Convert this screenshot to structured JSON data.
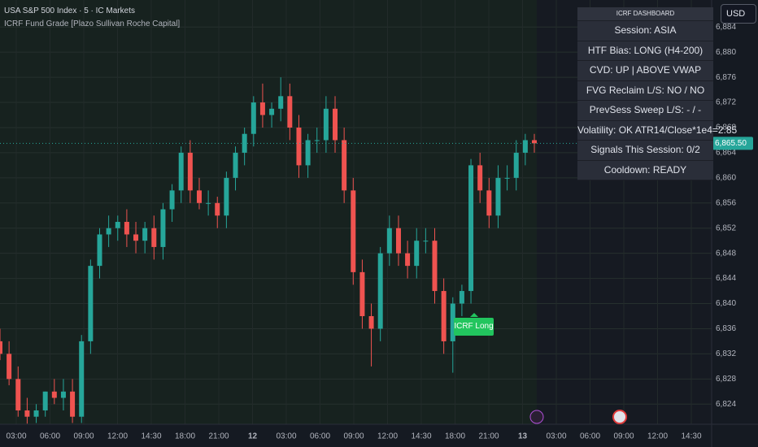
{
  "header": {
    "symbol": "USA S&P 500 Index · 5 · IC Markets",
    "indicator": "ICRF Fund Grade [Plazo Sullivan Roche Capital]",
    "currency": "USD"
  },
  "dashboard": {
    "title": "ICRF DASHBOARD",
    "rows": [
      "Session: ASIA",
      "HTF Bias: LONG (H4-200)",
      "CVD: UP | ABOVE VWAP",
      "FVG Reclaim L/S: NO / NO",
      "PrevSess Sweep L/S: - / -",
      "Volatility: OK  ATR14/Close*1e4=2.85",
      "Signals This Session: 0/2",
      "Cooldown: READY"
    ]
  },
  "signal_label": "ICRF Long",
  "chart_data": {
    "type": "candlestick",
    "up_color": "#26a69a",
    "down_color": "#ef5350",
    "ylim": [
      6820.8,
      6888.3
    ],
    "yticks": [
      {
        "value": 6824,
        "label": "6,824"
      },
      {
        "value": 6828,
        "label": "6,828"
      },
      {
        "value": 6832,
        "label": "6,832"
      },
      {
        "value": 6836,
        "label": "6,836"
      },
      {
        "value": 6840,
        "label": "6,840"
      },
      {
        "value": 6844,
        "label": "6,844"
      },
      {
        "value": 6848,
        "label": "6,848"
      },
      {
        "value": 6852,
        "label": "6,852"
      },
      {
        "value": 6856,
        "label": "6,856"
      },
      {
        "value": 6860,
        "label": "6,860"
      },
      {
        "value": 6864,
        "label": "6,864"
      },
      {
        "value": 6868,
        "label": "6,868"
      },
      {
        "value": 6872,
        "label": "6,872"
      },
      {
        "value": 6876,
        "label": "6,876"
      },
      {
        "value": 6880,
        "label": "6,880"
      },
      {
        "value": 6884,
        "label": "6,884"
      }
    ],
    "grid": true,
    "time_labels": [
      "03:00",
      "06:00",
      "09:00",
      "12:00",
      "14:30",
      "18:00",
      "21:00",
      "12",
      "03:00",
      "06:00",
      "09:00",
      "12:00",
      "14:30",
      "18:00",
      "21:00",
      "13",
      "03:00",
      "06:00",
      "09:00",
      "12:00",
      "14:30"
    ],
    "current_price": {
      "value": 6865.5,
      "label": "6,865.50"
    },
    "open": [
      6834,
      6832,
      6828,
      6823,
      6822,
      6823,
      6826,
      6825,
      6826,
      6822,
      6834,
      6846,
      6851,
      6852,
      6853,
      6851,
      6850,
      6852,
      6849,
      6855,
      6858,
      6864,
      6858,
      6856,
      6856,
      6854,
      6860,
      6864,
      6867,
      6872,
      6870,
      6871,
      6873,
      6868,
      6862,
      6866,
      6866,
      6871,
      6866,
      6858,
      6845,
      6838,
      6836,
      6848,
      6852,
      6848,
      6846,
      6850,
      6850,
      6842,
      6834,
      6840,
      6842,
      6862,
      6858,
      6854,
      6860,
      6860,
      6864,
      6866
    ],
    "high": [
      6836,
      6834,
      6830,
      6825,
      6824,
      6826,
      6828,
      6828,
      6828,
      6835,
      6847,
      6852,
      6854,
      6854,
      6855,
      6853,
      6853,
      6854,
      6856,
      6859,
      6865,
      6866,
      6860,
      6858,
      6857,
      6861,
      6865,
      6868,
      6873,
      6875,
      6872,
      6876,
      6875,
      6870,
      6867,
      6868,
      6873,
      6873,
      6868,
      6860,
      6847,
      6840,
      6849,
      6854,
      6854,
      6850,
      6852,
      6852,
      6852,
      6844,
      6841,
      6843,
      6863,
      6864,
      6860,
      6862,
      6862,
      6866,
      6867,
      6867
    ],
    "low": [
      6831,
      6827,
      6822,
      6820.9,
      6821,
      6822,
      6824,
      6823,
      6821,
      6821,
      6832,
      6844,
      6849,
      6850,
      6849,
      6848,
      6848,
      6847,
      6847,
      6853,
      6856,
      6856,
      6855,
      6854,
      6852,
      6852,
      6858,
      6862,
      6865,
      6868,
      6868,
      6869,
      6866,
      6860,
      6860,
      6864,
      6864,
      6864,
      6856,
      6843,
      6836,
      6830,
      6834,
      6846,
      6846,
      6844,
      6844,
      6848,
      6840,
      6832,
      6829,
      6838,
      6840,
      6856,
      6852,
      6852,
      6858,
      6858,
      6862,
      6864
    ],
    "close": [
      6832,
      6828,
      6823,
      6822,
      6823,
      6826,
      6825,
      6826,
      6822,
      6834,
      6846,
      6851,
      6852,
      6853,
      6851,
      6850,
      6852,
      6849,
      6855,
      6858,
      6864,
      6858,
      6856,
      6856,
      6854,
      6860,
      6864,
      6867,
      6872,
      6870,
      6871,
      6873,
      6868,
      6862,
      6866,
      6866,
      6871,
      6866,
      6858,
      6845,
      6838,
      6836,
      6848,
      6852,
      6848,
      6846,
      6850,
      6850,
      6842,
      6834,
      6840,
      6842,
      6862,
      6858,
      6854,
      6860,
      6860,
      6864,
      6866,
      6865.5
    ]
  }
}
